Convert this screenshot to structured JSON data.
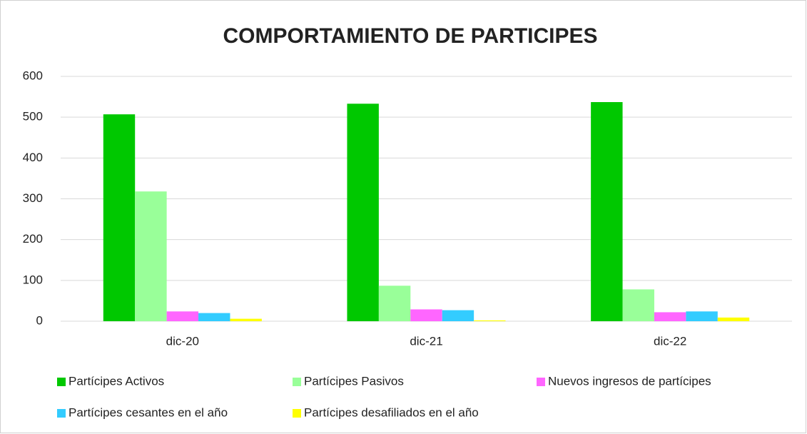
{
  "chart_data": {
    "type": "bar",
    "title": "COMPORTAMIENTO DE PARTICIPES",
    "categories": [
      "dic-20",
      "dic-21",
      "dic-22"
    ],
    "series": [
      {
        "name": "Partícipes Activos",
        "color": "#00c800",
        "values": [
          507,
          533,
          537
        ]
      },
      {
        "name": "Partícipes Pasivos",
        "color": "#99ff99",
        "values": [
          318,
          87,
          78
        ]
      },
      {
        "name": "Nuevos ingresos de partícipes",
        "color": "#ff66ff",
        "values": [
          24,
          29,
          22
        ]
      },
      {
        "name": "Partícipes cesantes en el año",
        "color": "#33ccff",
        "values": [
          20,
          27,
          24
        ]
      },
      {
        "name": "Partícipes desafiliados en el año",
        "color": "#ffff00",
        "values": [
          6,
          2,
          9
        ]
      }
    ],
    "ylim": [
      0,
      600
    ],
    "yticks": [
      0,
      100,
      200,
      300,
      400,
      500,
      600
    ],
    "grid": true,
    "legend": "bottom"
  }
}
